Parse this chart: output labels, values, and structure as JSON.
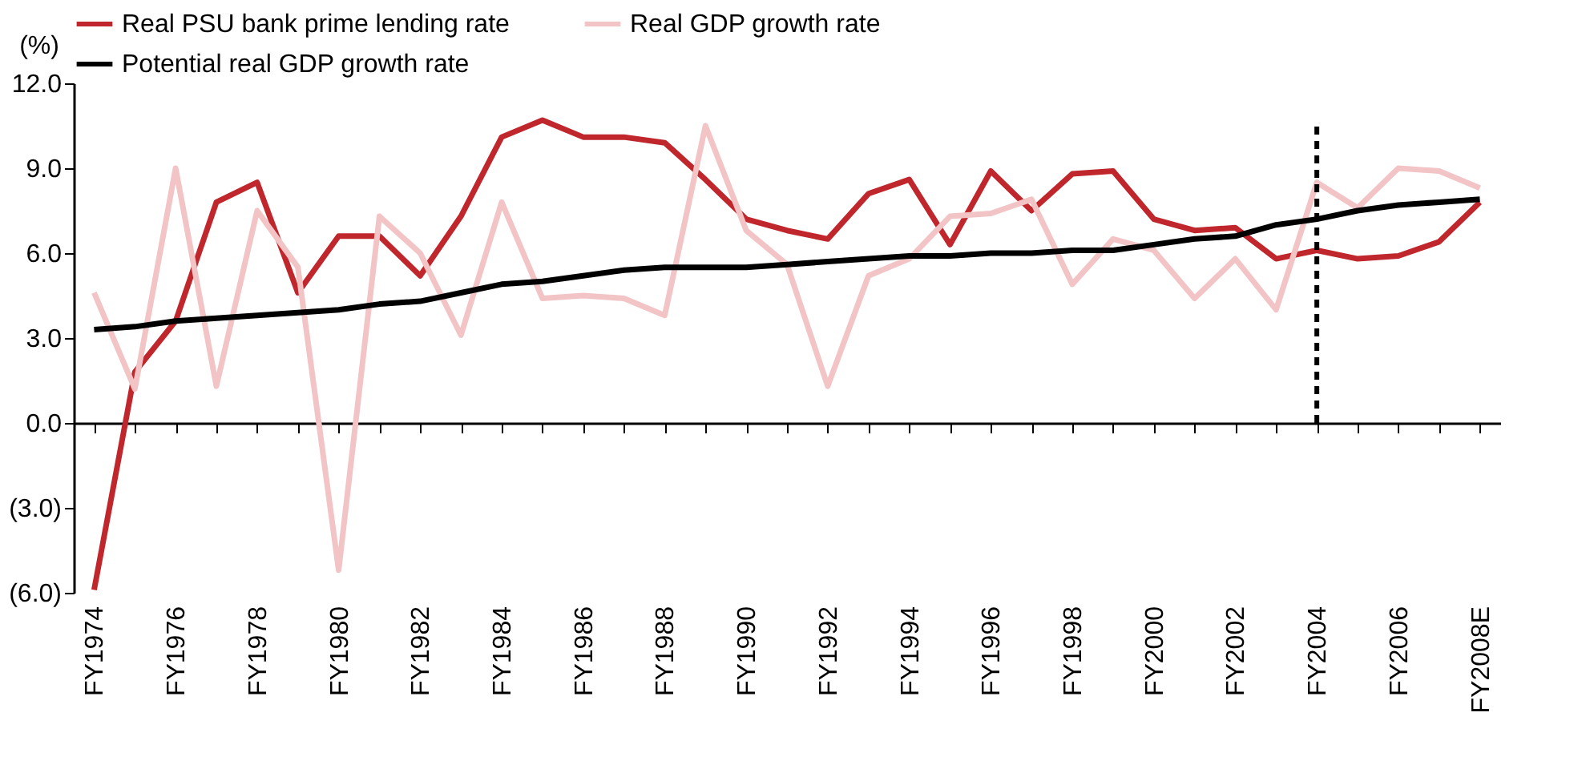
{
  "chart_data": {
    "type": "line",
    "ylabel": "(%)",
    "categories": [
      "FY1974",
      null,
      "FY1976",
      null,
      "FY1978",
      null,
      "FY1980",
      null,
      "FY1982",
      null,
      "FY1984",
      null,
      "FY1986",
      null,
      "FY1988",
      null,
      "FY1990",
      null,
      "FY1992",
      null,
      "FY1994",
      null,
      "FY1996",
      null,
      "FY1998",
      null,
      "FY2000",
      null,
      "FY2002",
      null,
      "FY2004",
      null,
      "FY2006",
      null,
      "FY2008E"
    ],
    "series": [
      {
        "name": "Real PSU bank prime lending rate",
        "color": "#c0272d",
        "values": [
          -5.9,
          1.8,
          3.6,
          7.8,
          8.5,
          4.6,
          6.6,
          6.6,
          5.2,
          7.3,
          10.1,
          10.7,
          10.1,
          10.1,
          9.9,
          8.6,
          7.2,
          6.8,
          6.5,
          8.1,
          8.6,
          6.3,
          8.9,
          7.5,
          8.8,
          8.9,
          7.2,
          6.8,
          6.9,
          5.8,
          6.1,
          5.8,
          5.9,
          6.4,
          7.8
        ]
      },
      {
        "name": "Real GDP growth rate",
        "color": "#f2c4c6",
        "values": [
          4.6,
          1.2,
          9.0,
          1.3,
          7.5,
          5.5,
          -5.2,
          7.3,
          6.0,
          3.1,
          7.8,
          4.4,
          4.5,
          4.4,
          3.8,
          10.5,
          6.8,
          5.6,
          1.3,
          5.2,
          5.8,
          7.3,
          7.4,
          7.9,
          4.9,
          6.5,
          6.1,
          4.4,
          5.8,
          4.0,
          8.5,
          7.6,
          9.0,
          8.9,
          8.3
        ]
      },
      {
        "name": "Potential real GDP growth rate",
        "color": "#000000",
        "values": [
          3.3,
          3.4,
          3.6,
          3.7,
          3.8,
          3.9,
          4.0,
          4.2,
          4.3,
          4.6,
          4.9,
          5.0,
          5.2,
          5.4,
          5.5,
          5.5,
          5.5,
          5.6,
          5.7,
          5.8,
          5.9,
          5.9,
          6.0,
          6.0,
          6.1,
          6.1,
          6.3,
          6.5,
          6.6,
          7.0,
          7.2,
          7.5,
          7.7,
          7.8,
          7.9
        ]
      }
    ],
    "ylim": [
      -6,
      12
    ],
    "yticks": [
      {
        "value": -6,
        "label": "(6.0)"
      },
      {
        "value": -3,
        "label": "(3.0)"
      },
      {
        "value": 0,
        "label": "0.0"
      },
      {
        "value": 3,
        "label": "3.0"
      },
      {
        "value": 6,
        "label": "6.0"
      },
      {
        "value": 9,
        "label": "9.0"
      },
      {
        "value": 12,
        "label": "12.0"
      }
    ],
    "ref_lines": [
      {
        "axis": "x",
        "value": "FY2004",
        "color": "#000000",
        "line_style": "dashed"
      }
    ],
    "legend": "top"
  }
}
